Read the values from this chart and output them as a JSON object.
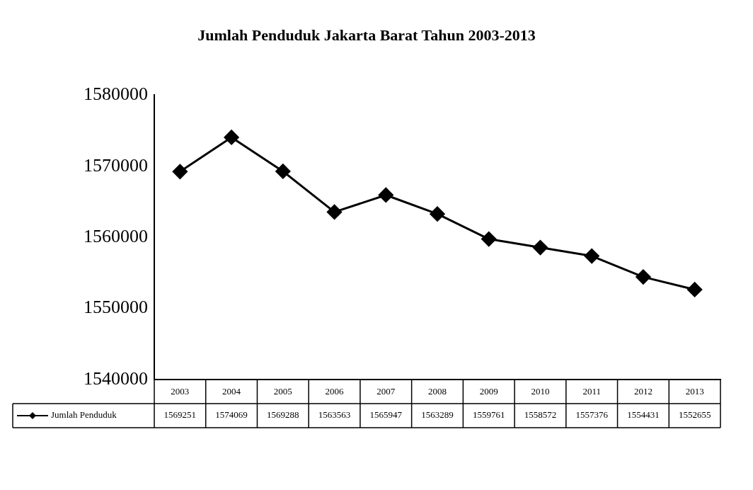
{
  "chart_data": {
    "type": "line",
    "title": "Jumlah Penduduk Jakarta Barat Tahun 2003-2013",
    "categories": [
      "2003",
      "2004",
      "2005",
      "2006",
      "2007",
      "2008",
      "2009",
      "2010",
      "2011",
      "2012",
      "2013"
    ],
    "series": [
      {
        "name": "Jumlah Penduduk",
        "color": "#000000",
        "values": [
          1569251,
          1574069,
          1569288,
          1563563,
          1565947,
          1563289,
          1559761,
          1558572,
          1557376,
          1554431,
          1552655
        ]
      }
    ],
    "ylim": [
      1540000,
      1580000
    ],
    "yticks": [
      1540000,
      1550000,
      1560000,
      1570000,
      1580000
    ],
    "grid": false,
    "legend": "bottom",
    "marker": "diamond",
    "line_style": "solid",
    "data_labels": true
  }
}
